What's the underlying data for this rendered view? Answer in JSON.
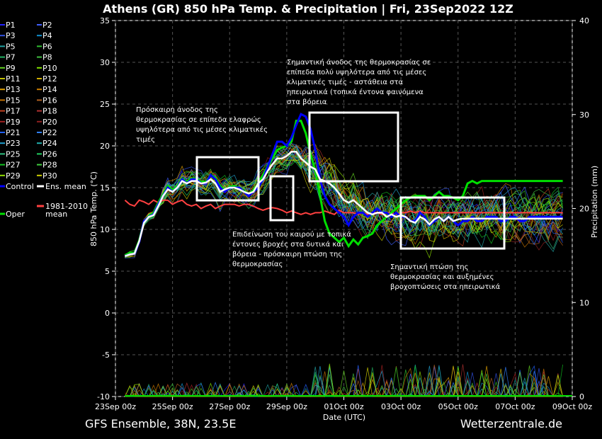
{
  "title": "Athens  (GR)  850 hPa Temp. & Precipitation | Fri, 23Sep2022 12Z",
  "footer_left": "GFS Ensemble, 38N, 23.5E",
  "footer_right": "Wetterzentrale.de",
  "colors": {
    "control": "#0000ff",
    "ens_mean": "#ffffff",
    "climate": "#ff4040",
    "oper": "#00e000"
  },
  "legend": {
    "members": [
      {
        "label": "P1",
        "color": "#2020ff"
      },
      {
        "label": "P2",
        "color": "#4060ff"
      },
      {
        "label": "P3",
        "color": "#3050e0"
      },
      {
        "label": "P4",
        "color": "#1090d0"
      },
      {
        "label": "P5",
        "color": "#20a0a0"
      },
      {
        "label": "P6",
        "color": "#30c030"
      },
      {
        "label": "P7",
        "color": "#20b060"
      },
      {
        "label": "P8",
        "color": "#40c040"
      },
      {
        "label": "P9",
        "color": "#60d020"
      },
      {
        "label": "P10",
        "color": "#80e000"
      },
      {
        "label": "P11",
        "color": "#c0c000"
      },
      {
        "label": "P12",
        "color": "#d0b000"
      },
      {
        "label": "P13",
        "color": "#e0a000"
      },
      {
        "label": "P14",
        "color": "#d08000"
      },
      {
        "label": "P15",
        "color": "#c07000"
      },
      {
        "label": "P16",
        "color": "#b06020"
      },
      {
        "label": "P17",
        "color": "#c04020"
      },
      {
        "label": "P18",
        "color": "#b03030"
      },
      {
        "label": "P19",
        "color": "#a02020"
      },
      {
        "label": "P20",
        "color": "#902020"
      },
      {
        "label": "P21",
        "color": "#2060ff"
      },
      {
        "label": "P22",
        "color": "#3080ff"
      },
      {
        "label": "P23",
        "color": "#20a0d0"
      },
      {
        "label": "P24",
        "color": "#20b0b0"
      },
      {
        "label": "P25",
        "color": "#30c080"
      },
      {
        "label": "P26",
        "color": "#20d060"
      },
      {
        "label": "P27",
        "color": "#10c020"
      },
      {
        "label": "P28",
        "color": "#40d040"
      },
      {
        "label": "P29",
        "color": "#90e000"
      },
      {
        "label": "P30",
        "color": "#d0d000"
      }
    ],
    "control": "Control",
    "ens_mean": "Ens. mean",
    "oper": "Oper",
    "climate_line1": "1981-2010",
    "climate_line2": "mean"
  },
  "annotations": [
    "Πρόσκαιρη άνοδος της",
    "θερμοκρασίας σε επίπεδα ελαφρώς",
    "υψηλότερα από τις μέσες κλιματικές",
    "τιμές",
    "Σημαντική άνοδος της θερμοκρασίας σε",
    "επίπεδα πολύ υψηλότερα από τις μέσες",
    "κλιματικές τιμές - αστάθεια στα",
    "ηπειρωτικά (τοπικά έντονα φαινόμενα",
    "στα βόρεια",
    "Επιδείνωση του καιρού με τοπικά",
    "έντονες βροχές στα δυτικά και",
    "βόρεια - πρόσκαιρη πτώση της",
    "θερμοκρασίας",
    "Σημαντική πτώση της",
    "θερμοκρασίας και αυξημένες",
    "βροχοπτώσεις στα ηπειρωτικά"
  ],
  "chart_data": {
    "type": "line",
    "title": "Athens  (GR)  850 hPa Temp. & Precipitation | Fri, 23Sep2022 12Z",
    "xlabel": "Date (UTC)",
    "ylabel": "850 hPa Temp. (°C)",
    "ylabel_right": "Precipitation (mm)",
    "x_ticks": [
      "23Sep 00z",
      "25Sep 00z",
      "27Sep 00z",
      "29Sep 00z",
      "01Oct 00z",
      "03Oct 00z",
      "05Oct 00z",
      "07Oct 00z",
      "09Oct 00z"
    ],
    "y_ticks": [
      35,
      30,
      25,
      20,
      15,
      10,
      5,
      0,
      -5,
      -10
    ],
    "y_right_ticks": [
      40,
      30,
      20,
      10,
      0
    ],
    "ylim": [
      -10,
      35
    ],
    "ylim_right": [
      0,
      40
    ],
    "x_hours": [
      12,
      18,
      24,
      30,
      36,
      42,
      48,
      54,
      60,
      66,
      72,
      78,
      84,
      90,
      96,
      102,
      108,
      114,
      120,
      126,
      132,
      138,
      144,
      150,
      156,
      162,
      168,
      174,
      180,
      186,
      192,
      198,
      204,
      210,
      216,
      222,
      228,
      234,
      240,
      246,
      252,
      258,
      264,
      270,
      276,
      282,
      288,
      294,
      300,
      306,
      312,
      318,
      324,
      330,
      336,
      342,
      348,
      354,
      360,
      366,
      372,
      378,
      384,
      390,
      396,
      402,
      408,
      414,
      420,
      426,
      432,
      438,
      444,
      450,
      456,
      462,
      468,
      474,
      480,
      486,
      492,
      498,
      504,
      510,
      516,
      522,
      528,
      534,
      540,
      546,
      552,
      558,
      564
    ],
    "series": [
      {
        "name": "Control",
        "values": [
          6.8,
          7.0,
          7.1,
          8.5,
          11.0,
          11.5,
          11.8,
          13.0,
          14.0,
          15.0,
          14.5,
          15.0,
          16.0,
          15.5,
          16.0,
          16.0,
          15.5,
          15.5,
          16.5,
          16.0,
          15.0,
          14.5,
          15.0,
          15.0,
          15.0,
          14.5,
          14.0,
          14.5,
          15.0,
          16.0,
          17.5,
          19.0,
          20.5,
          20.5,
          20.0,
          21.0,
          22.5,
          23.8,
          23.5,
          22.0,
          19.5,
          16.0,
          14.0,
          13.0,
          12.5,
          12.0,
          11.5,
          10.5,
          11.5,
          12.0,
          12.0,
          11.5,
          12.0,
          12.5,
          12.0,
          12.0,
          11.5,
          12.0,
          11.5,
          11.5,
          11.0,
          11.0,
          12.0,
          11.5,
          10.5,
          11.0,
          11.5,
          11.0,
          11.5,
          11.0,
          10.5,
          11.0,
          11.0,
          11.5,
          11.0,
          11.0,
          11.5,
          11.5,
          11.5,
          11.0,
          11.0,
          11.5,
          11.5,
          11.0,
          11.0,
          11.5,
          11.5,
          11.5,
          11.5,
          11.5,
          11.5,
          11.5,
          11.5
        ]
      },
      {
        "name": "Ens. mean",
        "values": [
          6.8,
          7.0,
          7.1,
          8.6,
          10.8,
          11.5,
          11.7,
          12.8,
          14.0,
          14.8,
          14.5,
          15.0,
          15.8,
          15.5,
          15.8,
          15.8,
          15.5,
          15.6,
          16.0,
          15.5,
          14.5,
          14.8,
          15.0,
          15.0,
          14.8,
          14.5,
          14.3,
          14.5,
          15.5,
          16.0,
          17.0,
          17.8,
          18.5,
          18.5,
          18.8,
          19.3,
          19.3,
          18.5,
          18.0,
          17.5,
          17.2,
          16.0,
          15.8,
          15.5,
          15.0,
          14.3,
          13.5,
          13.2,
          13.5,
          13.0,
          12.5,
          12.0,
          11.8,
          12.0,
          12.0,
          11.5,
          11.8,
          11.5,
          11.7,
          11.5,
          11.0,
          10.8,
          11.5,
          11.2,
          10.6,
          11.2,
          11.5,
          11.0,
          11.5,
          11.0,
          11.2,
          11.3,
          11.3,
          11.3,
          11.3,
          11.3,
          11.3,
          11.3,
          11.3,
          11.3,
          11.3,
          11.3,
          11.3,
          11.3,
          11.3,
          11.3,
          11.3,
          11.3,
          11.3,
          11.3,
          11.3,
          11.3,
          11.3
        ]
      },
      {
        "name": "Oper",
        "values": [
          6.9,
          7.2,
          7.2,
          8.7,
          11.0,
          11.6,
          12.0,
          13.2,
          14.2,
          15.2,
          14.7,
          15.2,
          16.1,
          15.7,
          16.1,
          16.1,
          15.7,
          15.7,
          16.5,
          16.2,
          15.2,
          14.7,
          15.1,
          15.2,
          15.0,
          14.6,
          14.2,
          14.7,
          15.5,
          16.5,
          17.5,
          18.5,
          19.5,
          19.8,
          20.0,
          20.5,
          23.0,
          23.0,
          21.5,
          19.0,
          17.0,
          14.0,
          11.0,
          9.5,
          9.0,
          8.5,
          9.0,
          8.0,
          8.8,
          8.2,
          9.0,
          9.2,
          9.5,
          10.5,
          11.0,
          11.5,
          12.0,
          12.5,
          13.0,
          13.5,
          13.8,
          14.0,
          14.0,
          14.0,
          13.5,
          14.0,
          14.5,
          14.0,
          14.0,
          13.8,
          13.5,
          14.0,
          15.5,
          15.8,
          15.5,
          15.8,
          15.8,
          15.8,
          15.8,
          15.8,
          15.8,
          15.8,
          15.8,
          15.8,
          15.8,
          15.8,
          15.8,
          15.8,
          15.8,
          15.8,
          15.8,
          15.8,
          15.8
        ]
      },
      {
        "name": "1981-2010 mean",
        "values": [
          13.5,
          13.0,
          12.8,
          13.5,
          13.3,
          13.0,
          13.5,
          13.2,
          13.5,
          13.5,
          13.0,
          13.3,
          13.5,
          13.0,
          12.8,
          13.0,
          12.5,
          12.8,
          13.0,
          12.5,
          12.8,
          13.0,
          13.0,
          13.0,
          12.8,
          13.0,
          13.0,
          12.8,
          12.5,
          12.3,
          12.5,
          12.6,
          12.5,
          12.3,
          12.0,
          12.2,
          12.0,
          11.8,
          12.0,
          11.8,
          12.0,
          12.0,
          12.2,
          12.0,
          11.8,
          12.3,
          12.0,
          12.0,
          12.0,
          11.8,
          12.0,
          11.8,
          12.0,
          12.0,
          11.8,
          12.0,
          12.0,
          11.8,
          12.0,
          12.0,
          12.2,
          12.0,
          12.2,
          12.0,
          12.0,
          12.0,
          12.0,
          12.0,
          12.0,
          12.0,
          12.0,
          12.0,
          12.0,
          12.0,
          12.0,
          12.0,
          12.0,
          12.0,
          12.0,
          12.0,
          12.0,
          12.0,
          12.0,
          12.0,
          12.0,
          12.0,
          12.0,
          12.0,
          12.0,
          12.0,
          12.0,
          12.0,
          12.0
        ]
      }
    ],
    "legend_position": "left-outside",
    "grid": true
  }
}
